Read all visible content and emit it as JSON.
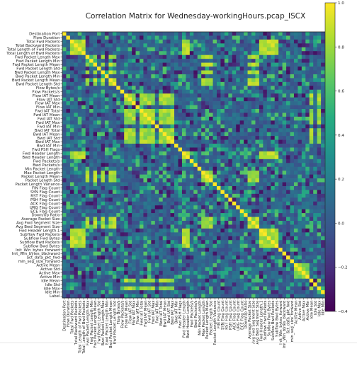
{
  "chart_data": {
    "type": "heatmap",
    "title": "Correlation Matrix for Wednesday-workingHours.pcap_ISCX",
    "labels": [
      "Destination Port",
      "Flow Duration",
      "Total Fwd Packets",
      "Total Backward Packets",
      "Total Length of Fwd Packets",
      "Total Length of Bwd Packets",
      "Fwd Packet Length Max",
      "Fwd Packet Length Min",
      "Fwd Packet Length Mean",
      "Fwd Packet Length Std",
      "Bwd Packet Length Max",
      "Bwd Packet Length Min",
      "Bwd Packet Length Mean",
      "Bwd Packet Length Std",
      "Flow Bytes/s",
      "Flow Packets/s",
      "Flow IAT Mean",
      "Flow IAT Std",
      "Flow IAT Max",
      "Flow IAT Min",
      "Fwd IAT Total",
      "Fwd IAT Mean",
      "Fwd IAT Std",
      "Fwd IAT Max",
      "Fwd IAT Min",
      "Bwd IAT Total",
      "Bwd IAT Mean",
      "Bwd IAT Std",
      "Bwd IAT Max",
      "Bwd IAT Min",
      "Fwd PSH Flags",
      "Fwd Header Length",
      "Bwd Header Length",
      "Fwd Packets/s",
      "Bwd Packets/s",
      "Min Packet Length",
      "Max Packet Length",
      "Packet Length Mean",
      "Packet Length Std",
      "Packet Length Variance",
      "FIN Flag Count",
      "SYN Flag Count",
      "RST Flag Count",
      "PSH Flag Count",
      "ACK Flag Count",
      "URG Flag Count",
      "ECE Flag Count",
      "Down/Up Ratio",
      "Average Packet Size",
      "Avg Fwd Segment Size",
      "Avg Bwd Segment Size",
      "Fwd Header Length.1",
      "Subflow Fwd Packets",
      "Subflow Fwd Bytes",
      "Subflow Bwd Packets",
      "Subflow Bwd Bytes",
      "Init_Win_bytes_forward",
      "Init_Win_bytes_backward",
      "act_data_pkt_fwd",
      "min_seg_size_forward",
      "Active Mean",
      "Active Std",
      "Active Max",
      "Active Min",
      "Idle Mean",
      "Idle Std",
      "Idle Max",
      "Idle Min",
      "Label"
    ],
    "colorscale": "viridis",
    "vmin": -0.4,
    "vmax": 1.0,
    "colorbar_ticks": [
      "1.0",
      "0.8",
      "0.6",
      "0.4",
      "0.2",
      "0.0",
      "−0.2",
      "−0.4"
    ],
    "colorbar_tick_values": [
      1.0,
      0.8,
      0.6,
      0.4,
      0.2,
      0.0,
      -0.2,
      -0.4
    ],
    "x_tick_labels_rotation": 90,
    "y_tick_labels": "all",
    "x_tick_labels": "all",
    "groups": [
      {
        "members": [
          2,
          3,
          4,
          5,
          31,
          32,
          51,
          52,
          53,
          54,
          55
        ],
        "value": 0.95
      },
      {
        "members": [
          6,
          8,
          10,
          12,
          13,
          36,
          37,
          38,
          48,
          49,
          50
        ],
        "value": 0.92
      },
      {
        "members": [
          16,
          17,
          18,
          20,
          21,
          22,
          23,
          25,
          26,
          27,
          28,
          64,
          66
        ],
        "value": 0.9
      },
      {
        "members": [
          60,
          61,
          62,
          63
        ],
        "value": 0.85
      }
    ],
    "background_value": 0.05
  }
}
